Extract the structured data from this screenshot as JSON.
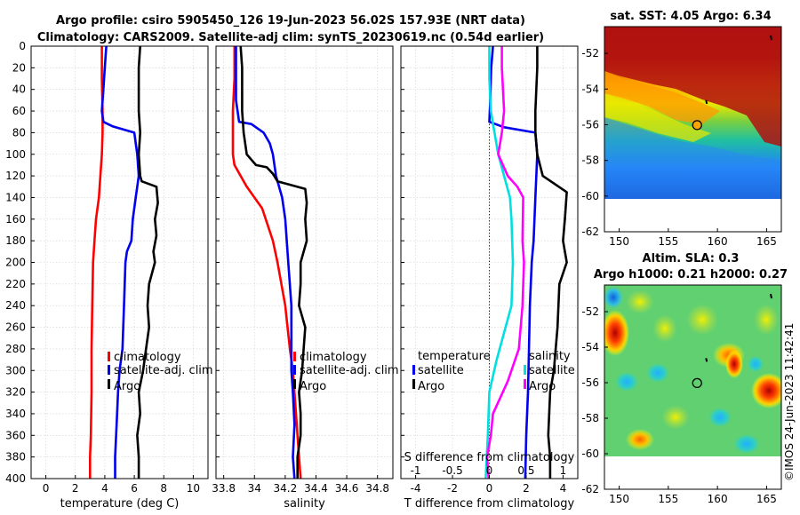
{
  "figure": {
    "title_line1": "Argo profile: csiro 5905450_126 19-Jun-2023 56.02S 157.93E (NRT data)",
    "title_line2": "Climatology: CARS2009. Satellite-adj clim: synTS_20230619.nc (0.54d earlier)",
    "copyright": "©IMOS 24-Jun-2023 11:42:41",
    "colors": {
      "climatology": "#ff0000",
      "satellite": "#0000ee",
      "argo": "#000000",
      "t_diff_clim": "#0000ee",
      "s_diff_clim": "#ff00ff",
      "t_diff_sat": "#00e0e0"
    }
  },
  "chart_data": [
    {
      "type": "line",
      "panel": "temperature",
      "xlabel": "temperature (deg C)",
      "xlim": [
        -1,
        11
      ],
      "xticks": [
        0,
        2,
        4,
        6,
        8,
        10
      ],
      "xtick_labels": [
        "0",
        "2",
        "4",
        "6",
        "8",
        "10"
      ],
      "ylim": [
        0,
        400
      ],
      "yticks": [
        0,
        20,
        40,
        60,
        80,
        100,
        120,
        140,
        160,
        180,
        200,
        220,
        240,
        260,
        280,
        300,
        320,
        340,
        360,
        380,
        400
      ],
      "ytick_labels": [
        "0",
        "20",
        "40",
        "60",
        "80",
        "100",
        "120",
        "140",
        "160",
        "180",
        "200",
        "220",
        "240",
        "260",
        "280",
        "300",
        "320",
        "340",
        "360",
        "380",
        "400"
      ],
      "grid": true,
      "legend": {
        "position": "lower-right",
        "entries": [
          "climatology",
          "satellite-adj. clim",
          "Argo"
        ]
      },
      "series": [
        {
          "name": "climatology",
          "color": "#ff0000",
          "x": [
            3.8,
            3.8,
            3.85,
            3.85,
            3.8,
            3.7,
            3.6,
            3.4,
            3.3,
            3.2,
            3.15,
            3.1,
            3.1,
            3.05,
            3.0,
            3.0
          ],
          "y": [
            0,
            30,
            60,
            80,
            100,
            120,
            140,
            160,
            180,
            200,
            240,
            280,
            320,
            360,
            380,
            400
          ]
        },
        {
          "name": "satellite-adj. clim",
          "color": "#0000ee",
          "x": [
            4.1,
            4.0,
            3.9,
            3.8,
            3.9,
            4.5,
            6.0,
            6.2,
            6.3,
            6.1,
            5.9,
            5.8,
            5.5,
            5.4,
            5.3,
            5.2,
            5.0,
            4.9,
            4.8,
            4.7,
            4.7
          ],
          "y": [
            0,
            20,
            40,
            60,
            70,
            74,
            80,
            100,
            120,
            140,
            160,
            180,
            190,
            200,
            240,
            280,
            300,
            320,
            350,
            380,
            400
          ]
        },
        {
          "name": "Argo",
          "color": "#000000",
          "x": [
            6.4,
            6.3,
            6.3,
            6.4,
            6.3,
            6.35,
            6.4,
            6.5,
            7.5,
            7.6,
            7.4,
            7.5,
            7.3,
            7.4,
            7.0,
            6.9,
            7.0,
            6.8,
            6.6,
            6.3,
            6.4,
            6.2,
            6.3,
            6.3
          ],
          "y": [
            0,
            20,
            60,
            80,
            100,
            110,
            120,
            125,
            130,
            145,
            160,
            175,
            190,
            200,
            220,
            240,
            260,
            280,
            300,
            320,
            340,
            360,
            380,
            400
          ]
        }
      ]
    },
    {
      "type": "line",
      "panel": "salinity",
      "xlabel": "salinity",
      "xlim": [
        33.75,
        34.9
      ],
      "xticks": [
        33.8,
        34.0,
        34.2,
        34.4,
        34.6,
        34.8
      ],
      "xtick_labels": [
        "33.8",
        "34",
        "34.2",
        "34.4",
        "34.6",
        "34.8"
      ],
      "ylim": [
        0,
        400
      ],
      "grid": true,
      "legend": {
        "position": "lower-right",
        "entries": [
          "climatology",
          "satellite-adj. clim",
          "Argo"
        ]
      },
      "series": [
        {
          "name": "climatology",
          "color": "#ff0000",
          "x": [
            33.87,
            33.87,
            33.86,
            33.86,
            33.86,
            33.87,
            33.95,
            34.05,
            34.12,
            34.15,
            34.2,
            34.23,
            34.25,
            34.27,
            34.29,
            34.3
          ],
          "y": [
            0,
            30,
            60,
            80,
            100,
            110,
            130,
            150,
            180,
            200,
            240,
            280,
            300,
            340,
            380,
            400
          ]
        },
        {
          "name": "satellite-adj. clim",
          "color": "#0000ee",
          "x": [
            33.88,
            33.88,
            33.88,
            33.9,
            33.98,
            34.06,
            34.1,
            34.12,
            34.14,
            34.18,
            34.2,
            34.22,
            34.24,
            34.24,
            34.24,
            34.25,
            34.26,
            34.25,
            34.26
          ],
          "y": [
            0,
            20,
            50,
            70,
            72,
            80,
            90,
            100,
            120,
            140,
            160,
            200,
            240,
            270,
            300,
            320,
            350,
            380,
            400
          ]
        },
        {
          "name": "Argo",
          "color": "#000000",
          "x": [
            33.91,
            33.92,
            33.92,
            33.92,
            33.93,
            33.95,
            34.01,
            34.08,
            34.12,
            34.15,
            34.33,
            34.34,
            34.33,
            34.34,
            34.3,
            34.3,
            34.29,
            34.33,
            34.32,
            34.31,
            34.29,
            34.3,
            34.3,
            34.28,
            34.28
          ],
          "y": [
            0,
            20,
            40,
            60,
            80,
            100,
            110,
            112,
            118,
            125,
            132,
            145,
            160,
            180,
            200,
            220,
            240,
            260,
            280,
            300,
            320,
            340,
            360,
            380,
            400
          ]
        }
      ]
    },
    {
      "type": "line",
      "panel": "differences",
      "xlabel": "T difference from climatology",
      "x2label": "S difference from climatology",
      "xlim": [
        -4.8,
        4.8
      ],
      "xticks": [
        -4,
        -2,
        0,
        2,
        4
      ],
      "xtick_labels": [
        "-4",
        "-2",
        "0",
        "2",
        "4"
      ],
      "x2ticks": [
        -1,
        -0.5,
        0,
        0.5,
        1
      ],
      "x2tick_labels": [
        "-1",
        "-0.5",
        "0",
        "0.5",
        "1"
      ],
      "ylim": [
        0,
        400
      ],
      "grid": true,
      "zero_line": true,
      "legend_left": {
        "title": "temperature",
        "entries": [
          "satellite",
          "Argo"
        ]
      },
      "legend_right": {
        "title": "salinity",
        "entries": [
          "satellite",
          "Argo"
        ]
      },
      "series": [
        {
          "name": "temperature satellite",
          "color": "#0000ee",
          "x": [
            0.2,
            0.1,
            0.05,
            0.0,
            0.8,
            2.5,
            2.6,
            2.5,
            2.4,
            2.3,
            2.2,
            2.15,
            2.1,
            2.0,
            1.95
          ],
          "y": [
            0,
            20,
            50,
            70,
            75,
            80,
            100,
            140,
            180,
            200,
            240,
            280,
            320,
            360,
            400
          ]
        },
        {
          "name": "temperature Argo",
          "color": "#000000",
          "x": [
            2.6,
            2.6,
            2.5,
            2.5,
            2.6,
            2.9,
            4.2,
            4.1,
            4.0,
            4.2,
            3.8,
            3.7,
            3.5,
            3.3,
            3.2,
            3.3,
            3.3
          ],
          "y": [
            0,
            20,
            60,
            80,
            100,
            120,
            135,
            160,
            180,
            200,
            220,
            260,
            300,
            320,
            360,
            380,
            400
          ]
        },
        {
          "name": "salinity satellite",
          "color": "#00e0e0",
          "x": [
            0.0,
            0.0,
            0.02,
            0.07,
            0.12,
            0.2,
            0.28,
            0.3,
            0.32,
            0.3,
            0.1,
            0.0,
            -0.02,
            -0.05
          ],
          "y": [
            0,
            30,
            60,
            80,
            100,
            120,
            140,
            160,
            200,
            240,
            290,
            320,
            360,
            400
          ]
        },
        {
          "name": "salinity Argo",
          "color": "#ff00ff",
          "x": [
            0.17,
            0.17,
            0.2,
            0.17,
            0.12,
            0.25,
            0.38,
            0.46,
            0.45,
            0.47,
            0.45,
            0.4,
            0.25,
            0.05,
            0.02,
            -0.03,
            -0.01
          ],
          "y": [
            0,
            20,
            60,
            80,
            100,
            120,
            130,
            140,
            180,
            200,
            240,
            280,
            310,
            340,
            360,
            380,
            400
          ]
        }
      ]
    },
    {
      "type": "heatmap",
      "panel": "sst_map",
      "title": "sat. SST: 4.05 Argo: 6.34",
      "xlim": [
        148.5,
        166.5
      ],
      "ylim": [
        -62,
        -50.5
      ],
      "xticks": [
        150,
        155,
        160,
        165
      ],
      "xtick_labels": [
        "150",
        "155",
        "160",
        "165"
      ],
      "yticks": [
        -52,
        -54,
        -56,
        -58,
        -60,
        -62
      ],
      "ytick_labels": [
        "-52",
        "-54",
        "-56",
        "-58",
        "-60",
        "-62"
      ],
      "data_extent": {
        "lon": [
          148.5,
          166.5
        ],
        "lat": [
          -60,
          -50.5
        ]
      },
      "argo_location": {
        "lon": 157.93,
        "lat": -56.02
      }
    },
    {
      "type": "heatmap",
      "panel": "sla_map",
      "title": "Altim. SLA: 0.3",
      "title_line2": "Argo h1000: 0.21 h2000: 0.27",
      "xlim": [
        148.5,
        166.5
      ],
      "ylim": [
        -62,
        -50.5
      ],
      "xticks": [
        150,
        155,
        160,
        165
      ],
      "xtick_labels": [
        "150",
        "155",
        "160",
        "165"
      ],
      "yticks": [
        -52,
        -54,
        -56,
        -58,
        -60,
        -62
      ],
      "ytick_labels": [
        "-52",
        "-54",
        "-56",
        "-58",
        "-60",
        "-62"
      ],
      "data_extent": {
        "lon": [
          148.5,
          166.5
        ],
        "lat": [
          -60,
          -50.5
        ]
      },
      "argo_location": {
        "lon": 157.93,
        "lat": -56.02
      }
    }
  ]
}
